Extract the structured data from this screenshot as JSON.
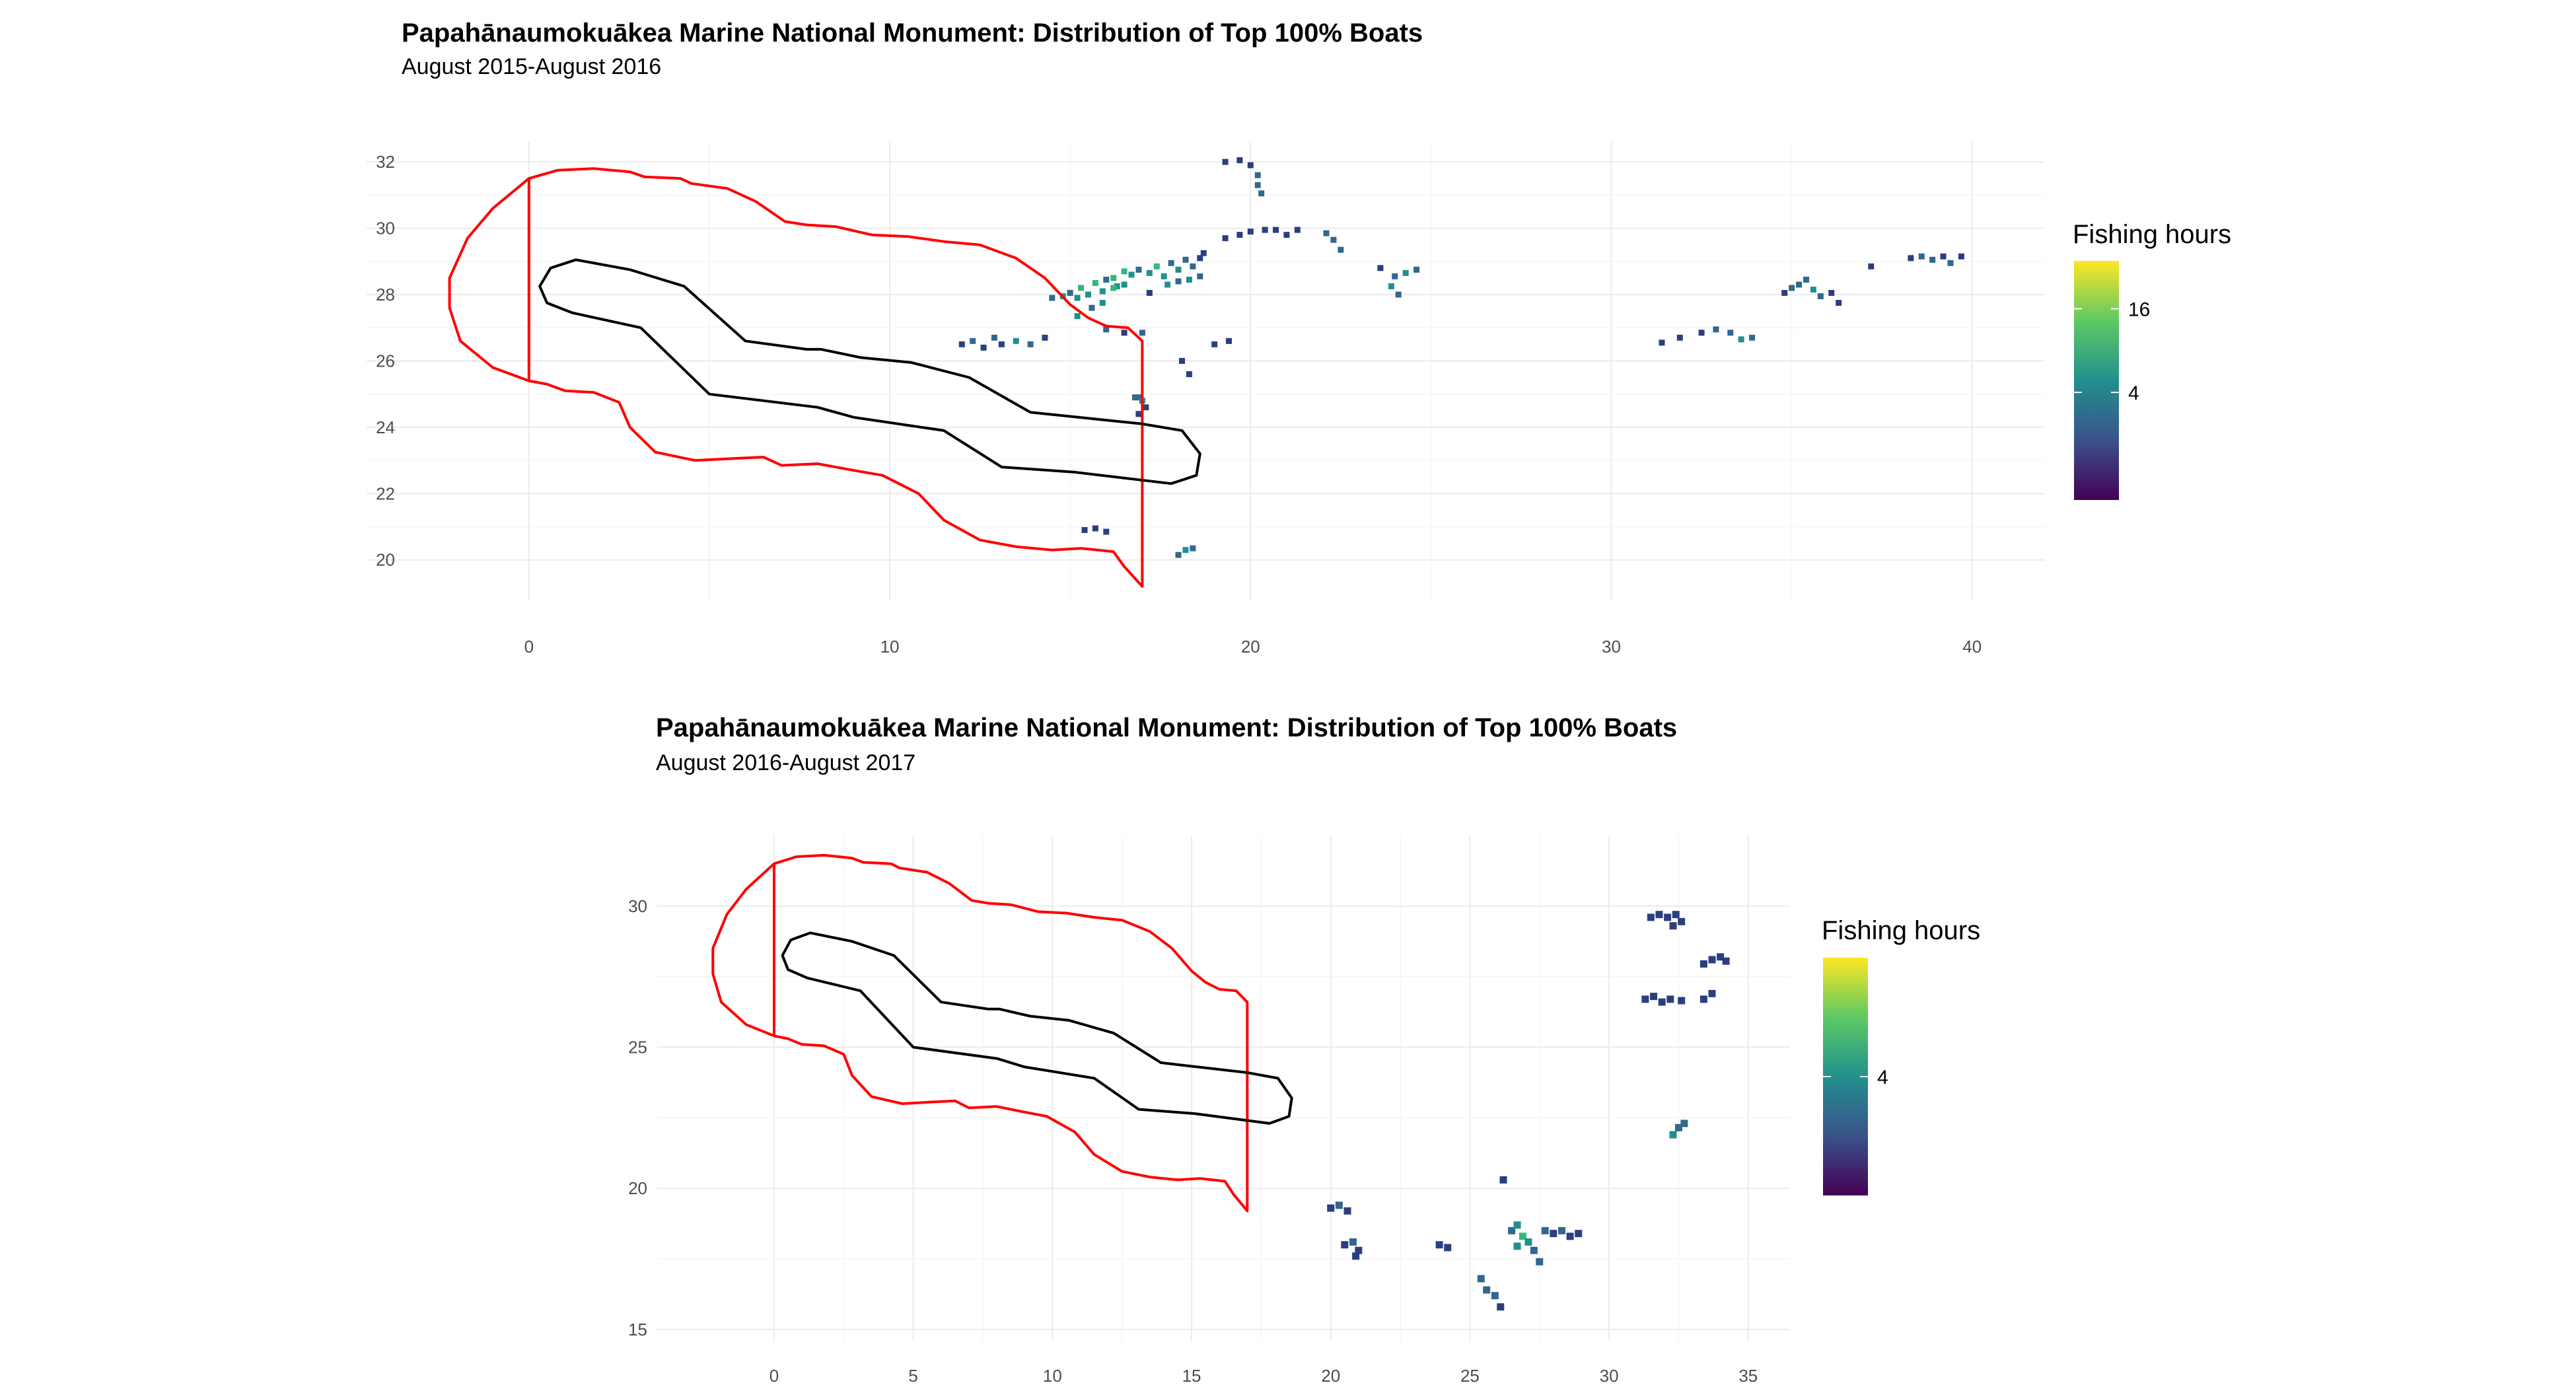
{
  "chart_data": [
    {
      "type": "heatmap",
      "title": "Papahānaumokuākea Marine National Monument: Distribution of Top 100% Boats",
      "subtitle": "August 2015-August 2016",
      "xlim": [
        -4.5,
        42
      ],
      "ylim": [
        18.8,
        32.6
      ],
      "x_ticks": [
        0,
        10,
        20,
        30,
        40
      ],
      "y_ticks": [
        20,
        22,
        24,
        26,
        28,
        30,
        32
      ],
      "grid": true,
      "legend": {
        "title": "Fishing hours",
        "placement": "right",
        "ticks": [
          16,
          4
        ],
        "tick_pos": [
          0.8,
          0.45
        ],
        "colors": [
          "#440154",
          "#3b528b",
          "#21908d",
          "#5dc963",
          "#fde725"
        ]
      },
      "outer_boundary": [
        [
          0,
          31.5
        ],
        [
          0.8,
          31.75
        ],
        [
          1.8,
          31.8
        ],
        [
          2.8,
          31.7
        ],
        [
          3.2,
          31.55
        ],
        [
          4.2,
          31.5
        ],
        [
          4.5,
          31.35
        ],
        [
          5.5,
          31.2
        ],
        [
          6.3,
          30.8
        ],
        [
          7.1,
          30.2
        ],
        [
          7.7,
          30.1
        ],
        [
          8.5,
          30.05
        ],
        [
          9.5,
          29.8
        ],
        [
          10.5,
          29.75
        ],
        [
          11.5,
          29.6
        ],
        [
          12.5,
          29.5
        ],
        [
          13.5,
          29.1
        ],
        [
          14.3,
          28.5
        ],
        [
          15,
          27.7
        ],
        [
          15.5,
          27.3
        ],
        [
          16,
          27.05
        ],
        [
          16.6,
          27
        ],
        [
          17,
          26.6
        ],
        [
          17,
          19.2
        ],
        [
          16.5,
          19.8
        ],
        [
          16.2,
          20.25
        ],
        [
          15.3,
          20.35
        ],
        [
          14.5,
          20.3
        ],
        [
          13.5,
          20.4
        ],
        [
          12.5,
          20.6
        ],
        [
          11.5,
          21.2
        ],
        [
          10.8,
          22
        ],
        [
          9.8,
          22.55
        ],
        [
          9,
          22.7
        ],
        [
          8,
          22.9
        ],
        [
          7,
          22.85
        ],
        [
          6.5,
          23.1
        ],
        [
          5.5,
          23.05
        ],
        [
          4.6,
          23
        ],
        [
          3.5,
          23.25
        ],
        [
          2.8,
          24
        ],
        [
          2.5,
          24.75
        ],
        [
          1.8,
          25.05
        ],
        [
          1,
          25.1
        ],
        [
          0.5,
          25.3
        ],
        [
          0,
          25.4
        ],
        [
          -1,
          25.8
        ],
        [
          -1.9,
          26.6
        ],
        [
          -2.2,
          27.6
        ],
        [
          -2.2,
          28.5
        ],
        [
          -1.7,
          29.7
        ],
        [
          -1,
          30.6
        ],
        [
          0,
          31.5
        ],
        [
          0,
          25.4
        ]
      ],
      "inner_boundary": [
        [
          1.3,
          29.05
        ],
        [
          0.6,
          28.8
        ],
        [
          0.3,
          28.25
        ],
        [
          0.5,
          27.75
        ],
        [
          1.2,
          27.45
        ],
        [
          3.1,
          27.0
        ],
        [
          5.0,
          25.0
        ],
        [
          8.0,
          24.6
        ],
        [
          9.0,
          24.3
        ],
        [
          11.5,
          23.9
        ],
        [
          13.1,
          22.8
        ],
        [
          15.1,
          22.65
        ],
        [
          17.8,
          22.3
        ],
        [
          18.5,
          22.55
        ],
        [
          18.6,
          23.2
        ],
        [
          18.1,
          23.9
        ],
        [
          17,
          24.1
        ],
        [
          13.9,
          24.45
        ],
        [
          12.2,
          25.5
        ],
        [
          10.6,
          25.95
        ],
        [
          9.2,
          26.1
        ],
        [
          8.1,
          26.35
        ],
        [
          7.7,
          26.35
        ],
        [
          6,
          26.6
        ],
        [
          4.3,
          28.25
        ],
        [
          2.8,
          28.75
        ],
        [
          1.3,
          29.05
        ]
      ],
      "cells": [
        [
          12,
          26.5,
          1
        ],
        [
          12.3,
          26.6,
          2
        ],
        [
          12.6,
          26.4,
          1
        ],
        [
          12.9,
          26.7,
          2
        ],
        [
          13.1,
          26.5,
          1
        ],
        [
          13.5,
          26.6,
          3
        ],
        [
          13.9,
          26.5,
          2
        ],
        [
          14.3,
          26.7,
          1
        ],
        [
          14.5,
          27.9,
          2
        ],
        [
          14.8,
          27.95,
          3
        ],
        [
          15,
          28.05,
          2
        ],
        [
          15.2,
          27.9,
          3
        ],
        [
          15.3,
          28.2,
          4
        ],
        [
          15.5,
          28.0,
          3
        ],
        [
          15.7,
          28.35,
          4
        ],
        [
          15.9,
          28.1,
          3
        ],
        [
          16.0,
          28.45,
          2
        ],
        [
          16.2,
          28.5,
          4
        ],
        [
          16.3,
          28.25,
          3
        ],
        [
          16.5,
          28.7,
          4
        ],
        [
          16.7,
          28.6,
          3
        ],
        [
          16.9,
          28.75,
          2
        ],
        [
          17.2,
          28.65,
          3
        ],
        [
          17.4,
          28.85,
          4
        ],
        [
          17.6,
          28.55,
          3
        ],
        [
          17.8,
          28.95,
          2
        ],
        [
          18.0,
          28.75,
          3
        ],
        [
          18.2,
          29.05,
          2
        ],
        [
          18.4,
          28.85,
          2
        ],
        [
          18.6,
          29.1,
          1
        ],
        [
          18.7,
          29.25,
          1
        ],
        [
          16.2,
          28.2,
          4
        ],
        [
          16.5,
          28.3,
          3
        ],
        [
          15.9,
          27.75,
          3
        ],
        [
          15.6,
          27.6,
          2
        ],
        [
          15.2,
          27.35,
          3
        ],
        [
          17.7,
          28.3,
          3
        ],
        [
          18.0,
          28.4,
          2
        ],
        [
          18.3,
          28.45,
          3
        ],
        [
          18.6,
          28.55,
          2
        ],
        [
          17.2,
          28.05,
          1
        ],
        [
          16.0,
          26.95,
          2
        ],
        [
          16.5,
          26.85,
          1
        ],
        [
          17.0,
          26.85,
          2
        ],
        [
          16.9,
          24.9,
          2
        ],
        [
          17.0,
          24.8,
          3
        ],
        [
          16.8,
          24.9,
          2
        ],
        [
          17.1,
          24.6,
          1
        ],
        [
          16.9,
          24.4,
          1
        ],
        [
          18.1,
          26.0,
          1
        ],
        [
          18.3,
          25.6,
          1
        ],
        [
          19.0,
          26.5,
          1
        ],
        [
          19.4,
          26.6,
          1
        ],
        [
          19.3,
          32.0,
          1
        ],
        [
          19.7,
          32.05,
          1
        ],
        [
          20.0,
          31.9,
          1
        ],
        [
          20.2,
          31.6,
          2
        ],
        [
          20.2,
          31.3,
          2
        ],
        [
          20.3,
          31.05,
          2
        ],
        [
          19.3,
          29.7,
          1
        ],
        [
          19.7,
          29.8,
          1
        ],
        [
          20.0,
          29.9,
          1
        ],
        [
          20.4,
          29.95,
          1
        ],
        [
          20.7,
          29.95,
          1
        ],
        [
          21.0,
          29.8,
          1
        ],
        [
          21.3,
          29.95,
          1
        ],
        [
          22.1,
          29.85,
          2
        ],
        [
          22.3,
          29.65,
          2
        ],
        [
          22.5,
          29.35,
          2
        ],
        [
          23.6,
          28.8,
          1
        ],
        [
          24.0,
          28.55,
          2
        ],
        [
          24.3,
          28.65,
          3
        ],
        [
          24.6,
          28.75,
          2
        ],
        [
          23.9,
          28.25,
          3
        ],
        [
          24.1,
          28.0,
          2
        ],
        [
          15.4,
          20.9,
          1
        ],
        [
          15.7,
          20.95,
          1
        ],
        [
          16.0,
          20.85,
          1
        ],
        [
          18.0,
          20.15,
          2
        ],
        [
          18.2,
          20.3,
          3
        ],
        [
          18.4,
          20.35,
          2
        ],
        [
          31.4,
          26.55,
          1
        ],
        [
          31.9,
          26.7,
          1
        ],
        [
          32.5,
          26.85,
          1
        ],
        [
          32.9,
          26.95,
          2
        ],
        [
          33.3,
          26.85,
          2
        ],
        [
          33.6,
          26.65,
          3
        ],
        [
          33.9,
          26.7,
          2
        ],
        [
          34.8,
          28.05,
          1
        ],
        [
          35.0,
          28.2,
          2
        ],
        [
          35.2,
          28.3,
          2
        ],
        [
          35.4,
          28.45,
          2
        ],
        [
          35.6,
          28.15,
          3
        ],
        [
          35.8,
          27.95,
          2
        ],
        [
          36.1,
          28.05,
          1
        ],
        [
          36.3,
          27.75,
          1
        ],
        [
          37.2,
          28.85,
          1
        ],
        [
          38.3,
          29.1,
          1
        ],
        [
          38.6,
          29.15,
          2
        ],
        [
          38.9,
          29.05,
          2
        ],
        [
          39.2,
          29.15,
          1
        ],
        [
          39.4,
          28.95,
          2
        ],
        [
          39.7,
          29.15,
          1
        ]
      ]
    },
    {
      "type": "heatmap",
      "title": "Papahānaumokuākea Marine National Monument: Distribution of Top 100% Boats",
      "subtitle": "August 2016-August 2017",
      "xlim": [
        -4.2,
        36.5
      ],
      "ylim": [
        14.6,
        32.5
      ],
      "x_ticks": [
        0,
        5,
        10,
        15,
        20,
        25,
        30,
        35
      ],
      "y_ticks": [
        15,
        20,
        25,
        30
      ],
      "grid": true,
      "legend": {
        "title": "Fishing hours",
        "placement": "right",
        "ticks": [
          4
        ],
        "tick_pos": [
          0.5
        ],
        "colors": [
          "#440154",
          "#3b528b",
          "#21908d",
          "#5dc963",
          "#fde725"
        ]
      },
      "outer_boundary": [
        [
          0,
          31.5
        ],
        [
          0.8,
          31.75
        ],
        [
          1.8,
          31.8
        ],
        [
          2.8,
          31.7
        ],
        [
          3.2,
          31.55
        ],
        [
          4.2,
          31.5
        ],
        [
          4.5,
          31.35
        ],
        [
          5.5,
          31.2
        ],
        [
          6.3,
          30.8
        ],
        [
          7.1,
          30.2
        ],
        [
          7.7,
          30.1
        ],
        [
          8.5,
          30.05
        ],
        [
          9.5,
          29.8
        ],
        [
          10.5,
          29.75
        ],
        [
          11.5,
          29.6
        ],
        [
          12.5,
          29.5
        ],
        [
          13.5,
          29.1
        ],
        [
          14.3,
          28.5
        ],
        [
          15,
          27.7
        ],
        [
          15.5,
          27.3
        ],
        [
          16,
          27.05
        ],
        [
          16.6,
          27
        ],
        [
          17,
          26.6
        ],
        [
          17,
          19.2
        ],
        [
          16.5,
          19.8
        ],
        [
          16.2,
          20.25
        ],
        [
          15.3,
          20.35
        ],
        [
          14.5,
          20.3
        ],
        [
          13.5,
          20.4
        ],
        [
          12.5,
          20.6
        ],
        [
          11.5,
          21.2
        ],
        [
          10.8,
          22
        ],
        [
          9.8,
          22.55
        ],
        [
          9,
          22.7
        ],
        [
          8,
          22.9
        ],
        [
          7,
          22.85
        ],
        [
          6.5,
          23.1
        ],
        [
          5.5,
          23.05
        ],
        [
          4.6,
          23
        ],
        [
          3.5,
          23.25
        ],
        [
          2.8,
          24
        ],
        [
          2.5,
          24.75
        ],
        [
          1.8,
          25.05
        ],
        [
          1,
          25.1
        ],
        [
          0.5,
          25.3
        ],
        [
          0,
          25.4
        ],
        [
          -1,
          25.8
        ],
        [
          -1.9,
          26.6
        ],
        [
          -2.2,
          27.6
        ],
        [
          -2.2,
          28.5
        ],
        [
          -1.7,
          29.7
        ],
        [
          -1,
          30.6
        ],
        [
          0,
          31.5
        ],
        [
          0,
          25.4
        ]
      ],
      "inner_boundary": [
        [
          1.3,
          29.05
        ],
        [
          0.6,
          28.8
        ],
        [
          0.3,
          28.25
        ],
        [
          0.5,
          27.75
        ],
        [
          1.2,
          27.45
        ],
        [
          3.1,
          27.0
        ],
        [
          5.0,
          25.0
        ],
        [
          8.0,
          24.6
        ],
        [
          9.0,
          24.3
        ],
        [
          11.5,
          23.9
        ],
        [
          13.1,
          22.8
        ],
        [
          15.1,
          22.65
        ],
        [
          17.8,
          22.3
        ],
        [
          18.5,
          22.55
        ],
        [
          18.6,
          23.2
        ],
        [
          18.1,
          23.9
        ],
        [
          17,
          24.1
        ],
        [
          13.9,
          24.45
        ],
        [
          12.2,
          25.5
        ],
        [
          10.6,
          25.95
        ],
        [
          9.2,
          26.1
        ],
        [
          8.1,
          26.35
        ],
        [
          7.7,
          26.35
        ],
        [
          6,
          26.6
        ],
        [
          4.3,
          28.25
        ],
        [
          2.8,
          28.75
        ],
        [
          1.3,
          29.05
        ]
      ],
      "cells": [
        [
          20.0,
          19.3,
          1
        ],
        [
          20.3,
          19.4,
          2
        ],
        [
          20.6,
          19.2,
          1
        ],
        [
          20.5,
          18.0,
          1
        ],
        [
          20.8,
          18.1,
          2
        ],
        [
          21.0,
          17.8,
          1
        ],
        [
          20.9,
          17.6,
          1
        ],
        [
          23.9,
          18.0,
          1
        ],
        [
          24.2,
          17.9,
          1
        ],
        [
          26.2,
          20.3,
          1
        ],
        [
          26.5,
          18.5,
          2
        ],
        [
          26.7,
          18.7,
          3
        ],
        [
          26.9,
          18.3,
          4
        ],
        [
          26.7,
          17.95,
          3
        ],
        [
          27.1,
          18.1,
          3
        ],
        [
          27.3,
          17.8,
          2
        ],
        [
          27.5,
          17.4,
          2
        ],
        [
          27.7,
          18.5,
          2
        ],
        [
          28.0,
          18.4,
          1
        ],
        [
          28.3,
          18.5,
          2
        ],
        [
          28.6,
          18.3,
          1
        ],
        [
          28.9,
          18.4,
          1
        ],
        [
          25.4,
          16.8,
          2
        ],
        [
          25.6,
          16.4,
          2
        ],
        [
          25.9,
          16.2,
          2
        ],
        [
          26.1,
          15.8,
          1
        ],
        [
          31.5,
          29.6,
          1
        ],
        [
          31.8,
          29.7,
          1
        ],
        [
          32.1,
          29.6,
          1
        ],
        [
          32.4,
          29.7,
          1
        ],
        [
          32.6,
          29.45,
          1
        ],
        [
          32.3,
          29.3,
          1
        ],
        [
          33.4,
          27.95,
          1
        ],
        [
          33.7,
          28.1,
          1
        ],
        [
          34.0,
          28.2,
          1
        ],
        [
          34.2,
          28.05,
          1
        ],
        [
          31.3,
          26.7,
          1
        ],
        [
          31.6,
          26.8,
          1
        ],
        [
          31.9,
          26.6,
          1
        ],
        [
          32.2,
          26.7,
          1
        ],
        [
          32.6,
          26.65,
          1
        ],
        [
          33.4,
          26.7,
          1
        ],
        [
          33.7,
          26.9,
          1
        ],
        [
          32.3,
          21.9,
          3
        ],
        [
          32.5,
          22.15,
          2
        ],
        [
          32.7,
          22.3,
          2
        ]
      ]
    }
  ]
}
